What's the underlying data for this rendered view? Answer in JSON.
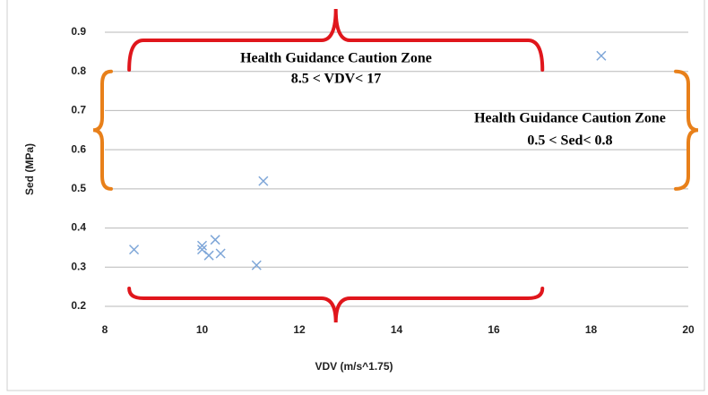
{
  "chart_data": {
    "type": "scatter",
    "x": [
      8.6,
      10.0,
      10.0,
      10.14,
      10.27,
      10.38,
      11.12,
      11.26,
      18.21
    ],
    "values": [
      0.345,
      0.355,
      0.345,
      0.33,
      0.37,
      0.335,
      0.305,
      0.52,
      0.84
    ],
    "color": "#7ea6d8",
    "xlim": [
      8,
      20
    ],
    "xticks": [
      8,
      10,
      12,
      14,
      16,
      18,
      20
    ],
    "ylim": [
      0.2,
      0.9
    ],
    "yticks": [
      0.2,
      0.3,
      0.4,
      0.5,
      0.6,
      0.7,
      0.8,
      0.9
    ],
    "grid": true,
    "xlabel": "VDV (m/s^1.75)",
    "ylabel": "Sed (MPa)",
    "annotations": [
      {
        "lines": [
          "Health Guidance Caution Zone",
          "8.5 < VDV< 17"
        ],
        "xrange": [
          8.5,
          17
        ],
        "color": "#e0161c"
      },
      {
        "lines": [
          "Health Guidance Caution Zone",
          "0.5 < Sed< 0.8"
        ],
        "yrange": [
          0.5,
          0.8
        ],
        "color": "#e8801a"
      }
    ]
  }
}
